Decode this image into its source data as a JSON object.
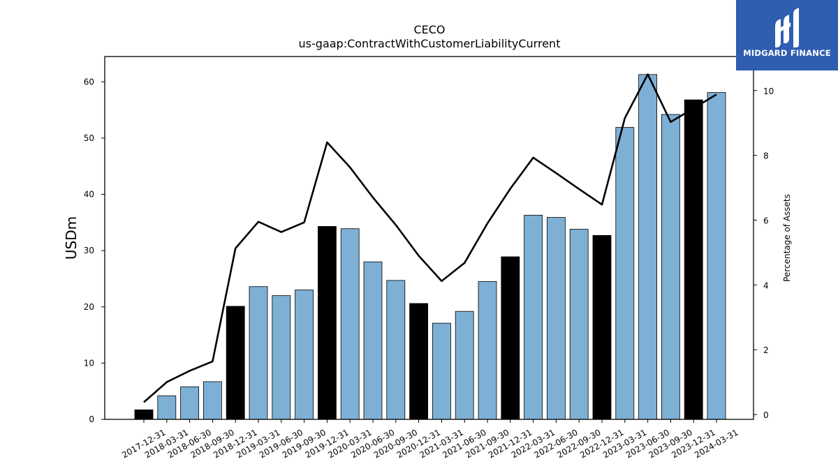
{
  "chart_data": {
    "type": "bar",
    "title": "CECO",
    "subtitle": "us-gaap:ContractWithCustomerLiabilityCurrent",
    "ylabel": "USDm",
    "y2label": "Percentage of Assets",
    "ylim": [
      0,
      64.5
    ],
    "y2lim": [
      -0.15,
      11.05
    ],
    "yticks": [
      "0",
      "10",
      "20",
      "30",
      "40",
      "50",
      "60"
    ],
    "y2ticks": [
      "0",
      "2",
      "4",
      "6",
      "8",
      "10"
    ],
    "categories": [
      "2017-12-31",
      "2018-03-31",
      "2018-06-30",
      "2018-09-30",
      "2018-12-31",
      "2019-03-31",
      "2019-06-30",
      "2019-09-30",
      "2019-12-31",
      "2020-03-31",
      "2020-06-30",
      "2020-09-30",
      "2020-12-31",
      "2021-03-31",
      "2021-06-30",
      "2021-09-30",
      "2021-12-31",
      "2022-03-31",
      "2022-06-30",
      "2022-09-30",
      "2022-12-31",
      "2023-03-31",
      "2023-06-30",
      "2023-09-30",
      "2023-12-31",
      "2024-03-31"
    ],
    "series": [
      {
        "kind": "bar",
        "values": [
          1.7,
          4.2,
          5.8,
          6.7,
          20.1,
          23.6,
          22.0,
          23.0,
          34.3,
          33.9,
          28.0,
          24.7,
          20.6,
          17.1,
          19.2,
          24.5,
          28.9,
          36.3,
          35.9,
          33.8,
          32.7,
          51.9,
          61.3,
          54.2,
          56.8,
          58.1
        ],
        "highlight": [
          true,
          false,
          false,
          false,
          true,
          false,
          false,
          false,
          true,
          false,
          false,
          false,
          true,
          false,
          false,
          false,
          true,
          false,
          false,
          false,
          true,
          false,
          false,
          false,
          true,
          false
        ]
      },
      {
        "kind": "line",
        "axis": "right",
        "values": [
          0.38,
          1.0,
          1.35,
          1.64,
          5.13,
          5.95,
          5.63,
          5.93,
          8.4,
          7.63,
          6.7,
          5.85,
          4.9,
          4.12,
          4.68,
          5.9,
          6.97,
          7.93,
          7.45,
          6.96,
          6.48,
          9.15,
          10.5,
          9.03,
          9.45,
          9.88
        ]
      }
    ],
    "colors": {
      "bar_normal": "#7eafd4",
      "bar_highlight": "#000000",
      "line": "#000000"
    },
    "grid": false
  },
  "logo": {
    "text": "MIDGARD FINANCE",
    "background": "#2f5eb0"
  }
}
